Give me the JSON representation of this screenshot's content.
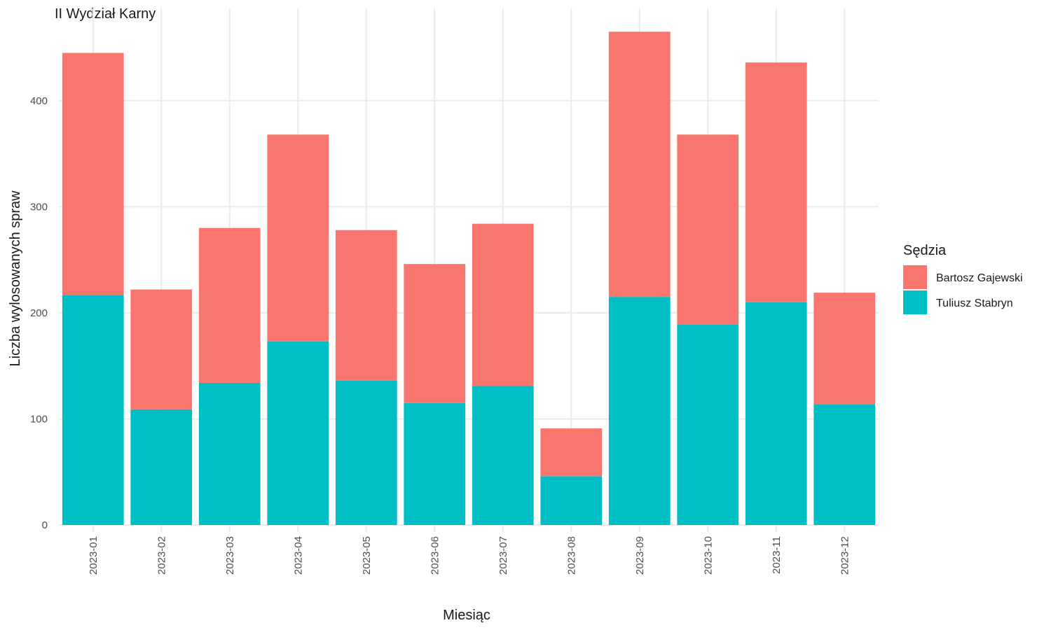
{
  "chart_data": {
    "type": "bar",
    "stacked": true,
    "title": "II Wydział Karny",
    "xlabel": "Miesiąc",
    "ylabel": "Liczba wylosowanych spraw",
    "categories": [
      "2023-01",
      "2023-02",
      "2023-03",
      "2023-04",
      "2023-05",
      "2023-06",
      "2023-07",
      "2023-08",
      "2023-09",
      "2023-10",
      "2023-11",
      "2023-12"
    ],
    "series": [
      {
        "name": "Tuliusz Stabryn",
        "color": "#00BFC4",
        "values": [
          217,
          109,
          134,
          173,
          136,
          115,
          131,
          46,
          215,
          189,
          210,
          114
        ]
      },
      {
        "name": "Bartosz Gajewski",
        "color": "#F8766D",
        "values": [
          228,
          113,
          146,
          195,
          142,
          131,
          153,
          45,
          250,
          179,
          226,
          105
        ]
      }
    ],
    "ylim": [
      0,
      480
    ],
    "yticks": [
      0,
      100,
      200,
      300,
      400
    ],
    "grid": true,
    "legend": {
      "title": "Sędzia",
      "position": "right",
      "entries": [
        {
          "label": "Bartosz Gajewski",
          "color": "#F8766D"
        },
        {
          "label": "Tuliusz Stabryn",
          "color": "#00BFC4"
        }
      ]
    }
  }
}
